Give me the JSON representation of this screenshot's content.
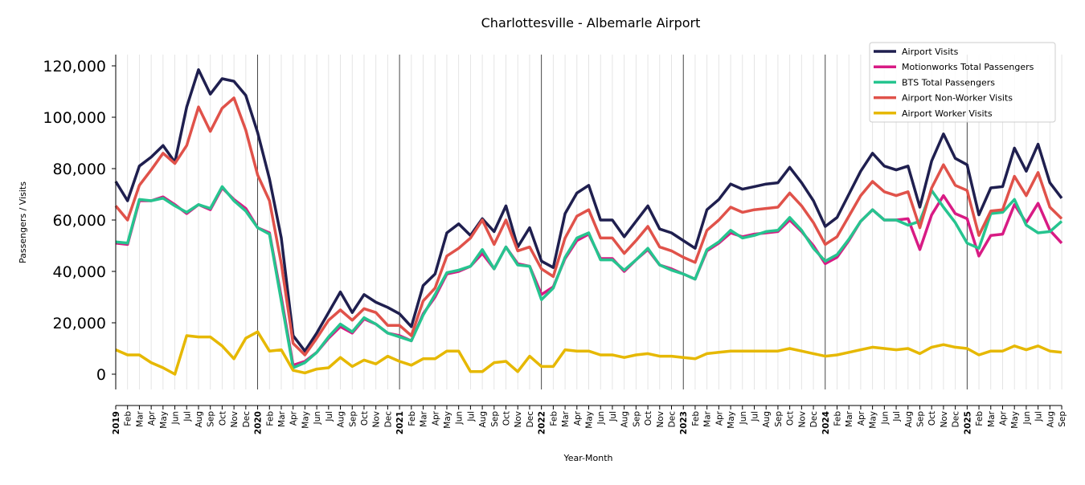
{
  "chart_data": {
    "type": "line",
    "title": "Charlottesville - Albemarle Airport",
    "xlabel": "Year-Month",
    "ylabel": "Passengers / Visits",
    "ylim": [
      -6000,
      125000
    ],
    "yticks": [
      0,
      20000,
      40000,
      60000,
      80000,
      100000,
      120000
    ],
    "ytick_labels": [
      "0",
      "20,000",
      "40,000",
      "60,000",
      "80,000",
      "100,000",
      "120,000"
    ],
    "grid": "vertical monthly lines, darker at each January",
    "legend_position": "top-right",
    "start": "2019-01",
    "month_labels": [
      "Jan",
      "Feb",
      "Mar",
      "Apr",
      "May",
      "Jun",
      "Jul",
      "Aug",
      "Sep",
      "Oct",
      "Nov",
      "Dec"
    ],
    "years": [
      "2019",
      "2020",
      "2021",
      "2022",
      "2023",
      "2024",
      "2025"
    ],
    "series": [
      {
        "name": "Airport Visits",
        "color": "#1f1f4f",
        "values": [
          75000,
          67500,
          81000,
          84500,
          89000,
          82500,
          104000,
          118500,
          109000,
          115000,
          114000,
          108500,
          94000,
          76000,
          53000,
          15000,
          9000,
          16000,
          24000,
          32000,
          24000,
          31000,
          28000,
          26000,
          23500,
          18500,
          34500,
          39000,
          55000,
          58500,
          54000,
          60500,
          55500,
          65500,
          49500,
          57000,
          44000,
          41500,
          62500,
          70500,
          73500,
          60000,
          60000,
          53500,
          59500,
          65500,
          56500,
          55000,
          52000,
          49000,
          64000,
          68000,
          74000,
          72000,
          73000,
          74000,
          74500,
          80500,
          74500,
          67500,
          57500,
          61000,
          70000,
          79000,
          86000,
          81000,
          79500,
          81000,
          65000,
          83000,
          93500,
          84000,
          81500,
          62000,
          72500,
          73000,
          88000,
          79000,
          89500,
          74500,
          68500
        ]
      },
      {
        "name": "Motionworks Total Passengers",
        "color": "#d81b84",
        "values": [
          51000,
          50500,
          67500,
          67500,
          69000,
          66000,
          62500,
          66000,
          64000,
          72500,
          68000,
          64500,
          57000,
          55000,
          30000,
          3500,
          5000,
          8500,
          14000,
          18500,
          16000,
          21500,
          19500,
          16000,
          15000,
          13000,
          23500,
          30000,
          39000,
          40000,
          42000,
          47000,
          41000,
          49500,
          43000,
          42000,
          31000,
          34000,
          45000,
          52000,
          54500,
          45000,
          45000,
          40000,
          44500,
          48500,
          42500,
          41000,
          39000,
          37000,
          48000,
          51000,
          55000,
          53500,
          54500,
          55000,
          55500,
          60000,
          55500,
          50000,
          43000,
          45500,
          52000,
          59500,
          64000,
          60000,
          60000,
          60500,
          48500,
          62000,
          69500,
          62500,
          60500,
          46000,
          54000,
          54500,
          66000,
          59000,
          66500,
          56000,
          51000
        ]
      },
      {
        "name": "BTS Total Passengers",
        "color": "#26c48f",
        "values": [
          51500,
          51000,
          68000,
          67500,
          68500,
          65500,
          63000,
          66000,
          64500,
          73000,
          67500,
          63500,
          57000,
          54500,
          28500,
          2500,
          4500,
          8500,
          14500,
          19500,
          16500,
          22000,
          19500,
          16000,
          14500,
          13000,
          23000,
          31000,
          39500,
          40500,
          42000,
          48500,
          41000,
          49500,
          42500,
          42000,
          29000,
          33500,
          45500,
          53000,
          55000,
          44500,
          44500,
          40500,
          44500,
          49000,
          42500,
          40500,
          39000,
          37000,
          48500,
          51500,
          56000,
          53000,
          54000,
          55500,
          56000,
          61000,
          56000,
          49000,
          44000,
          46500,
          52500,
          59500,
          64000,
          60000,
          60000,
          58000,
          59500,
          71500,
          65000,
          59000,
          51000,
          49000,
          62500,
          63000,
          68000,
          58000,
          55000,
          55500,
          59500
        ]
      },
      {
        "name": "Airport Non-Worker Visits",
        "color": "#e0524a",
        "values": [
          65500,
          60000,
          73500,
          79500,
          86000,
          82000,
          89000,
          104000,
          94500,
          103500,
          107500,
          95000,
          77500,
          67500,
          43000,
          12000,
          7500,
          14000,
          21000,
          25000,
          21000,
          25500,
          24000,
          19000,
          19000,
          15000,
          28500,
          33500,
          46000,
          49000,
          53000,
          60000,
          50500,
          60000,
          48000,
          49500,
          41000,
          38000,
          53000,
          61500,
          64000,
          53000,
          53000,
          47000,
          52000,
          57500,
          49500,
          48000,
          45500,
          43500,
          56000,
          60000,
          65000,
          63000,
          64000,
          64500,
          65000,
          70500,
          65500,
          59000,
          50500,
          53500,
          61500,
          69500,
          75000,
          71000,
          69500,
          71000,
          57000,
          72500,
          81500,
          73500,
          71500,
          54000,
          63500,
          64000,
          77000,
          69500,
          78500,
          65000,
          60500
        ]
      },
      {
        "name": "Airport Worker Visits",
        "color": "#e6b800",
        "values": [
          9500,
          7500,
          7500,
          4500,
          2500,
          0,
          15000,
          14500,
          14500,
          11000,
          6000,
          14000,
          16500,
          9000,
          9500,
          1500,
          500,
          2000,
          2500,
          6500,
          3000,
          5500,
          4000,
          7000,
          5000,
          3500,
          6000,
          6000,
          9000,
          9000,
          1000,
          1000,
          4500,
          5000,
          1000,
          7000,
          3000,
          3000,
          9500,
          9000,
          9000,
          7500,
          7500,
          6500,
          7500,
          8000,
          7000,
          7000,
          6500,
          6000,
          8000,
          8500,
          9000,
          9000,
          9000,
          9000,
          9000,
          10000,
          9000,
          8000,
          7000,
          7500,
          8500,
          9500,
          10500,
          10000,
          9500,
          10000,
          8000,
          10500,
          11500,
          10500,
          10000,
          7500,
          9000,
          9000,
          11000,
          9500,
          11000,
          9000,
          8500
        ]
      }
    ]
  }
}
